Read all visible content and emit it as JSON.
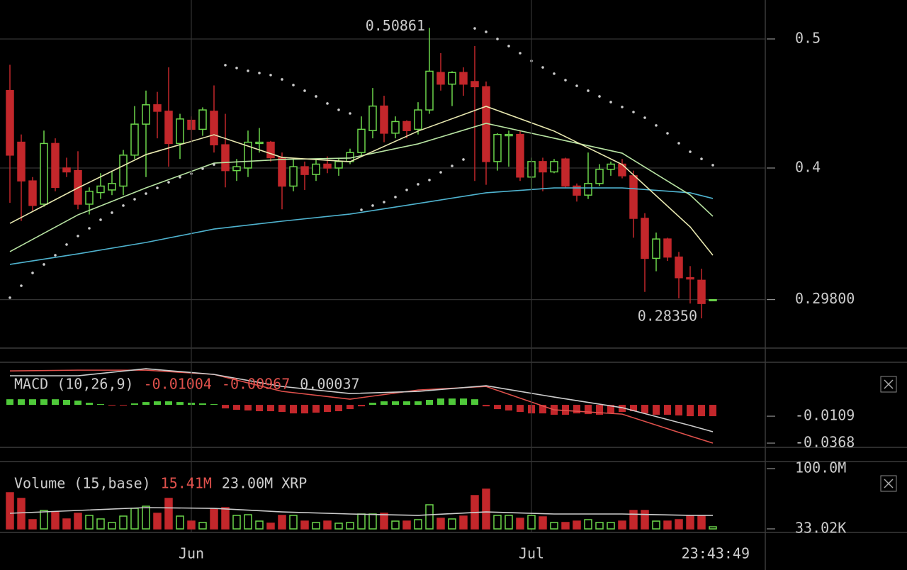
{
  "clock": "23:43:49",
  "chart_data": [
    {
      "type": "candlestick",
      "xlim": [
        -0.875,
        66.625
      ],
      "ylim": [
        0.261,
        0.5302
      ],
      "yticks": [
        0.5,
        0.4,
        {
          "value": 0.298,
          "label": "0.29800"
        }
      ],
      "grid": true,
      "up_color": "#6cd64b",
      "down_color": "#c3272b",
      "x": [
        0,
        1,
        2,
        3,
        4,
        5,
        6,
        7,
        8,
        9,
        10,
        11,
        12,
        13,
        14,
        15,
        16,
        17,
        18,
        19,
        20,
        21,
        22,
        23,
        24,
        25,
        26,
        27,
        28,
        29,
        30,
        31,
        32,
        33,
        34,
        35,
        36,
        37,
        38,
        39,
        40,
        41,
        42,
        43,
        44,
        45,
        46,
        47,
        48,
        49,
        50,
        51,
        52,
        53,
        54,
        55,
        56,
        57,
        58,
        59,
        60,
        61,
        62
      ],
      "open": [
        0.46,
        0.42,
        0.39,
        0.372,
        0.419,
        0.4,
        0.398,
        0.372,
        0.381,
        0.383,
        0.386,
        0.41,
        0.434,
        0.449,
        0.444,
        0.419,
        0.437,
        0.43,
        0.444,
        0.418,
        0.398,
        0.4,
        0.419,
        0.42,
        0.408,
        0.386,
        0.401,
        0.395,
        0.403,
        0.4,
        0.405,
        0.412,
        0.429,
        0.448,
        0.427,
        0.436,
        0.43,
        0.445,
        0.474,
        0.465,
        0.474,
        0.467,
        0.463,
        0.405,
        0.425,
        0.426,
        0.393,
        0.405,
        0.397,
        0.407,
        0.386,
        0.379,
        0.388,
        0.399,
        0.403,
        0.394,
        0.361,
        0.33,
        0.345,
        0.331,
        0.315,
        0.313,
        0.298
      ],
      "high": [
        0.48,
        0.426,
        0.393,
        0.429,
        0.423,
        0.408,
        0.413,
        0.385,
        0.396,
        0.398,
        0.414,
        0.448,
        0.46,
        0.459,
        0.478,
        0.442,
        0.44,
        0.447,
        0.464,
        0.442,
        0.407,
        0.429,
        0.431,
        0.421,
        0.412,
        0.407,
        0.405,
        0.407,
        0.409,
        0.408,
        0.415,
        0.44,
        0.462,
        0.456,
        0.44,
        0.437,
        0.451,
        0.50861,
        0.489,
        0.475,
        0.478,
        0.4945,
        0.467,
        0.427,
        0.429,
        0.429,
        0.408,
        0.408,
        0.407,
        0.408,
        0.388,
        0.412,
        0.403,
        0.405,
        0.407,
        0.398,
        0.365,
        0.35,
        0.346,
        0.335,
        0.324,
        0.322,
        0.298
      ],
      "low": [
        0.373,
        0.359,
        0.367,
        0.37,
        0.382,
        0.393,
        0.368,
        0.364,
        0.376,
        0.379,
        0.379,
        0.407,
        0.393,
        0.423,
        0.401,
        0.407,
        0.42,
        0.425,
        0.412,
        0.385,
        0.39,
        0.393,
        0.412,
        0.405,
        0.368,
        0.382,
        0.383,
        0.39,
        0.396,
        0.394,
        0.403,
        0.409,
        0.423,
        0.42,
        0.423,
        0.423,
        0.426,
        0.442,
        0.46,
        0.448,
        0.456,
        0.39,
        0.387,
        0.398,
        0.401,
        0.39,
        0.383,
        0.382,
        0.396,
        0.385,
        0.374,
        0.376,
        0.386,
        0.394,
        0.392,
        0.346,
        0.304,
        0.32,
        0.328,
        0.299,
        0.295,
        0.2835,
        0.298
      ],
      "close": [
        0.41,
        0.39,
        0.371,
        0.419,
        0.385,
        0.397,
        0.372,
        0.382,
        0.386,
        0.388,
        0.41,
        0.434,
        0.449,
        0.444,
        0.419,
        0.438,
        0.43,
        0.445,
        0.418,
        0.398,
        0.401,
        0.42,
        0.42,
        0.408,
        0.386,
        0.401,
        0.395,
        0.403,
        0.4,
        0.405,
        0.412,
        0.43,
        0.448,
        0.427,
        0.436,
        0.429,
        0.445,
        0.475,
        0.465,
        0.474,
        0.465,
        0.463,
        0.405,
        0.426,
        0.426,
        0.393,
        0.405,
        0.397,
        0.405,
        0.386,
        0.379,
        0.388,
        0.399,
        0.403,
        0.394,
        0.361,
        0.33,
        0.345,
        0.331,
        0.315,
        0.314,
        0.295,
        0.298
      ],
      "annotations": [
        {
          "x": 37,
          "value": 0.50861,
          "label": "0.50861"
        },
        {
          "x": 61,
          "value": 0.2835,
          "label": "0.28350"
        }
      ],
      "overlays": [
        {
          "type": "line",
          "color": "#4fb3cf",
          "x": [
            0,
            6,
            12,
            18,
            24,
            30,
            36,
            42,
            48,
            54,
            60,
            62
          ],
          "values": [
            0.3253,
            0.3335,
            0.3423,
            0.3527,
            0.3588,
            0.3643,
            0.3725,
            0.3808,
            0.3846,
            0.3846,
            0.3808,
            0.3764
          ]
        },
        {
          "type": "line",
          "color": "#b7e3a2",
          "x": [
            0,
            6,
            12,
            18,
            24,
            30,
            36,
            42,
            48,
            54,
            60,
            62
          ],
          "values": [
            0.3352,
            0.3637,
            0.3846,
            0.4038,
            0.4066,
            0.4077,
            0.4187,
            0.4346,
            0.4231,
            0.4115,
            0.3791,
            0.3626
          ]
        },
        {
          "type": "line",
          "color": "#e8e8b0",
          "x": [
            0,
            6,
            12,
            18,
            24,
            30,
            36,
            42,
            48,
            54,
            60,
            62
          ],
          "values": [
            0.3571,
            0.3846,
            0.4104,
            0.4258,
            0.4082,
            0.4049,
            0.4286,
            0.4478,
            0.4286,
            0.4027,
            0.3544,
            0.3324
          ]
        },
        {
          "type": "dots",
          "color": "#cccccc",
          "x": [
            0,
            1,
            2,
            3,
            4,
            5,
            6,
            7,
            8,
            9,
            10,
            11,
            12,
            13,
            14,
            15,
            16,
            17,
            18,
            19,
            20,
            21,
            22,
            23,
            24,
            25,
            26,
            27,
            28,
            29,
            30,
            31,
            32,
            33,
            34,
            35,
            36,
            37,
            38,
            39,
            40,
            41,
            42,
            43,
            44,
            45,
            46,
            47,
            48,
            49,
            50,
            51,
            52,
            53,
            54,
            55,
            56,
            57,
            58,
            59,
            60,
            61,
            62
          ],
          "values": [
            0.2995,
            0.3088,
            0.3187,
            0.3253,
            0.3324,
            0.3407,
            0.3473,
            0.3533,
            0.3599,
            0.3654,
            0.3709,
            0.3758,
            0.3802,
            0.3846,
            0.389,
            0.3929,
            0.3956,
            0.3995,
            0.4027,
            0.4797,
            0.4775,
            0.4753,
            0.4736,
            0.472,
            0.4687,
            0.4643,
            0.4599,
            0.4555,
            0.45,
            0.4451,
            0.4423,
            0.3676,
            0.3709,
            0.3736,
            0.3775,
            0.383,
            0.3874,
            0.3907,
            0.3967,
            0.4016,
            0.4066,
            0.5082,
            0.5055,
            0.5,
            0.4945,
            0.489,
            0.483,
            0.478,
            0.4731,
            0.4681,
            0.4637,
            0.4599,
            0.4555,
            0.4511,
            0.4473,
            0.4434,
            0.439,
            0.433,
            0.4269,
            0.4192,
            0.4126,
            0.4071,
            0.4022
          ]
        }
      ]
    },
    {
      "type": "macd",
      "title": "MACD (10,26,9)",
      "readout": [
        {
          "value": -0.01004,
          "color": "#e0514c"
        },
        {
          "value": -0.00967,
          "color": "#e0514c"
        },
        {
          "value": 0.00037,
          "color": "#cccccc"
        }
      ],
      "xlim": [
        -0.875,
        66.625
      ],
      "ylim": [
        -0.0402,
        0.0403
      ],
      "yticks": [
        -0.0109,
        -0.0368
      ],
      "grid": false,
      "up_color": "#4fc93a",
      "down_color": "#c3272b",
      "x": [
        0,
        1,
        2,
        3,
        4,
        5,
        6,
        7,
        8,
        9,
        10,
        11,
        12,
        13,
        14,
        15,
        16,
        17,
        18,
        19,
        20,
        21,
        22,
        23,
        24,
        25,
        26,
        27,
        28,
        29,
        30,
        31,
        32,
        33,
        34,
        35,
        36,
        37,
        38,
        39,
        40,
        41,
        42,
        43,
        44,
        45,
        46,
        47,
        48,
        49,
        50,
        51,
        52,
        53,
        54,
        55,
        56,
        57,
        58,
        59,
        60,
        61,
        62
      ],
      "histogram": [
        0.0054,
        0.0054,
        0.0054,
        0.0054,
        0.0054,
        0.0048,
        0.0041,
        0.002,
        0.0007,
        -0.0007,
        -0.0007,
        0.0014,
        0.0027,
        0.0034,
        0.0034,
        0.0027,
        0.002,
        0.0014,
        0.0007,
        -0.0034,
        -0.0048,
        -0.0054,
        -0.0061,
        -0.0061,
        -0.0068,
        -0.0082,
        -0.0082,
        -0.0075,
        -0.0068,
        -0.0061,
        -0.0041,
        -0.0014,
        0.002,
        0.0034,
        0.0034,
        0.0034,
        0.0034,
        0.0048,
        0.0061,
        0.0061,
        0.0061,
        0.0054,
        -0.0014,
        -0.0041,
        -0.0054,
        -0.0068,
        -0.0082,
        -0.0082,
        -0.0095,
        -0.0095,
        -0.0082,
        -0.0089,
        -0.0095,
        -0.0082,
        -0.0068,
        -0.0061,
        -0.0082,
        -0.0095,
        -0.0095,
        -0.0102,
        -0.0109,
        -0.0109,
        -0.0109
      ],
      "lines": [
        {
          "color": "#e0514c",
          "x": [
            0,
            6,
            12,
            18,
            24,
            30,
            36,
            42,
            48,
            54,
            60,
            62
          ],
          "values": [
            0.0327,
            0.0334,
            0.0334,
            0.0293,
            0.013,
            0.0055,
            0.0143,
            0.0177,
            -0.0048,
            -0.0089,
            -0.03,
            -0.0368
          ]
        },
        {
          "color": "#cccccc",
          "x": [
            0,
            6,
            12,
            18,
            24,
            30,
            36,
            42,
            48,
            54,
            60,
            62
          ],
          "values": [
            0.028,
            0.028,
            0.0348,
            0.0293,
            0.0177,
            0.0109,
            0.013,
            0.0184,
            0.0075,
            -0.0027,
            -0.0198,
            -0.0259
          ]
        }
      ]
    },
    {
      "type": "volume",
      "title": "Volume (15,base)",
      "readout": [
        {
          "value": 15.41,
          "label": "15.41M",
          "color": "#e0514c"
        },
        {
          "value": 23.0,
          "label": "23.00M XRP",
          "color": "#cccccc"
        }
      ],
      "xlim": [
        -0.875,
        66.625
      ],
      "xticks": [
        {
          "value": 16,
          "label": "Jun"
        },
        {
          "value": 46,
          "label": "Jul"
        }
      ],
      "ylim": [
        -4.7,
        110.6
      ],
      "yticks": [
        {
          "value": 100,
          "label": "100.0M"
        },
        {
          "value": 0.03302,
          "label": "33.02K"
        }
      ],
      "grid": false,
      "x": [
        0,
        1,
        2,
        3,
        4,
        5,
        6,
        7,
        8,
        9,
        10,
        11,
        12,
        13,
        14,
        15,
        16,
        17,
        18,
        19,
        20,
        21,
        22,
        23,
        24,
        25,
        26,
        27,
        28,
        29,
        30,
        31,
        32,
        33,
        34,
        35,
        36,
        37,
        38,
        39,
        40,
        41,
        42,
        43,
        44,
        45,
        46,
        47,
        48,
        49,
        50,
        51,
        52,
        53,
        54,
        55,
        56,
        57,
        58,
        59,
        60,
        61,
        62
      ],
      "values": [
        60.0,
        50.6,
        15.3,
        30.6,
        28.2,
        16.5,
        25.9,
        22.4,
        16.5,
        10.6,
        21.2,
        34.1,
        37.6,
        25.9,
        50.6,
        21.2,
        12.9,
        10.6,
        32.9,
        35.3,
        22.4,
        23.5,
        12.9,
        9.4,
        22.4,
        22.4,
        12.9,
        10.6,
        12.9,
        9.4,
        10.6,
        24.7,
        24.7,
        25.9,
        12.9,
        12.9,
        15.3,
        40.0,
        17.6,
        16.5,
        21.2,
        55.3,
        65.9,
        22.4,
        22.4,
        17.6,
        22.4,
        20.0,
        10.6,
        10.6,
        12.9,
        15.3,
        10.6,
        10.6,
        12.9,
        30.6,
        30.6,
        12.9,
        12.9,
        15.3,
        21.2,
        21.2,
        3.5
      ],
      "ma": {
        "color": "#cccccc",
        "x": [
          0,
          6,
          12,
          18,
          24,
          30,
          36,
          42,
          48,
          54,
          60,
          62
        ],
        "values": [
          25.9,
          30.6,
          35.3,
          34.1,
          28.2,
          24.7,
          22.4,
          28.2,
          24.7,
          24.7,
          22.4,
          22.4
        ]
      }
    }
  ]
}
